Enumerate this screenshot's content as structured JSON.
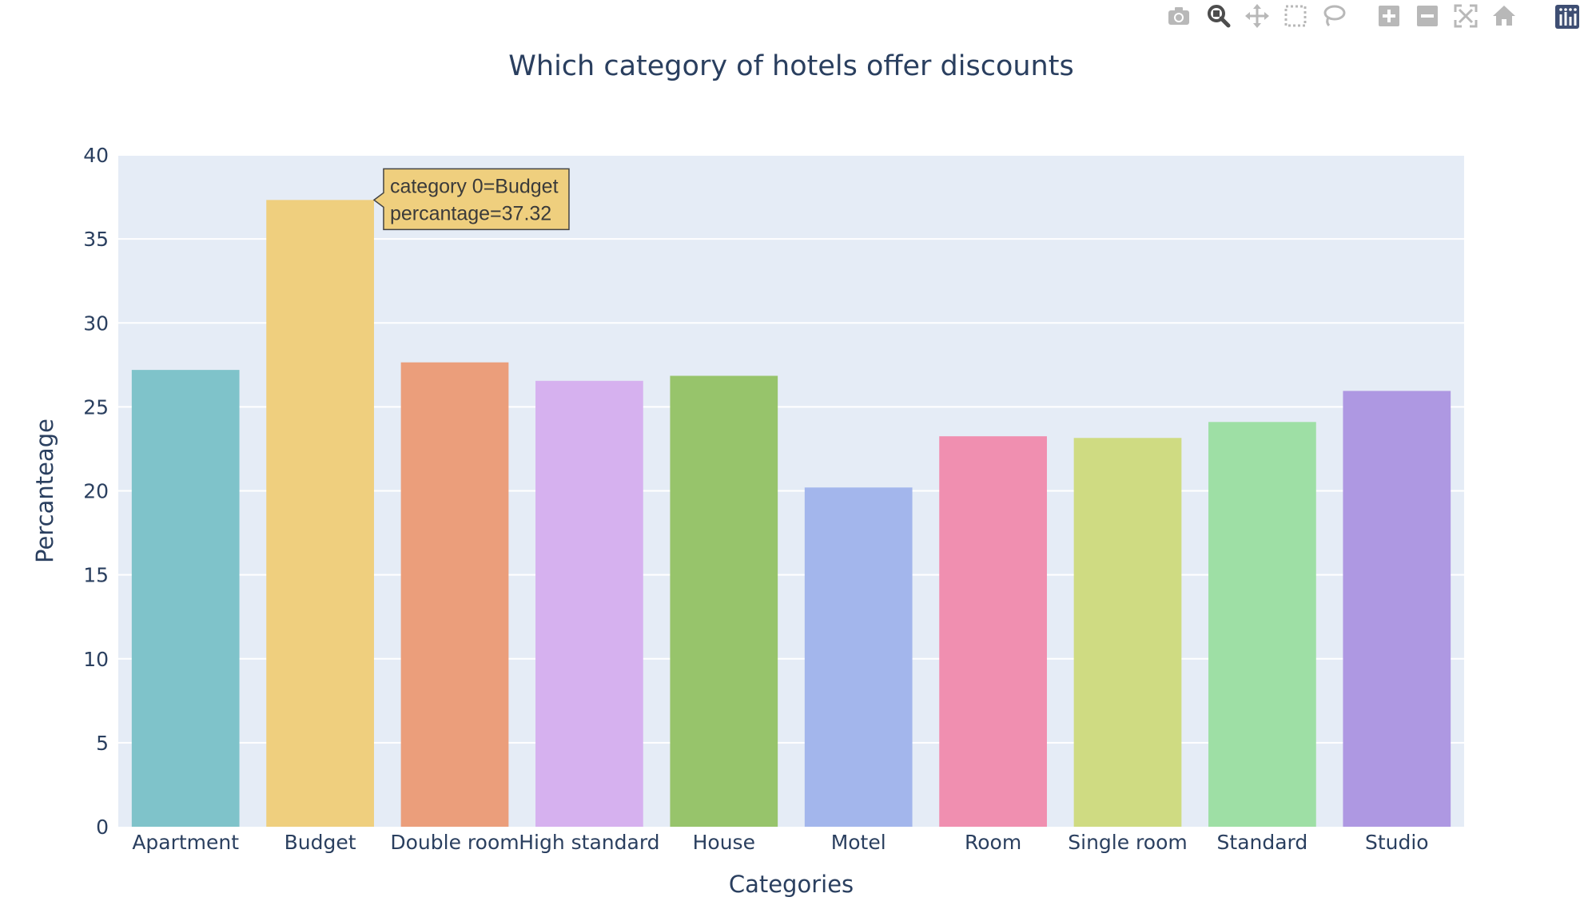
{
  "modebar": {
    "buttons": [
      {
        "name": "camera-icon",
        "title": "Download plot as a png"
      },
      {
        "name": "zoom-icon",
        "title": "Zoom",
        "active": true
      },
      {
        "name": "pan-icon",
        "title": "Pan"
      },
      {
        "name": "box-select-icon",
        "title": "Box Select"
      },
      {
        "name": "lasso-select-icon",
        "title": "Lasso Select"
      },
      {
        "name": "zoom-in-icon",
        "title": "Zoom in"
      },
      {
        "name": "zoom-out-icon",
        "title": "Zoom out"
      },
      {
        "name": "autoscale-icon",
        "title": "Autoscale"
      },
      {
        "name": "reset-axes-icon",
        "title": "Reset axes"
      },
      {
        "name": "plotly-logo-icon",
        "title": "Produced with Plotly"
      }
    ]
  },
  "chart_data": {
    "type": "bar",
    "title": "Which category of hotels offer discounts",
    "xlabel": "Categories",
    "ylabel": "Percanteage",
    "categories": [
      "Apartment",
      "Budget",
      "Double room",
      "High standard",
      "House",
      "Motel",
      "Room",
      "Single room",
      "Standard",
      "Studio"
    ],
    "values": [
      27.2,
      37.32,
      27.65,
      26.55,
      26.85,
      20.2,
      23.25,
      23.15,
      24.1,
      25.95
    ],
    "colors": [
      "#7fc3ca",
      "#efcf7e",
      "#eb9e7b",
      "#d6b1ef",
      "#97c46b",
      "#a3b6ec",
      "#f08fb0",
      "#cfdb82",
      "#9edfa5",
      "#ae98e2"
    ],
    "ylim": [
      0,
      40
    ],
    "yticks": [
      0,
      5,
      10,
      15,
      20,
      25,
      30,
      35,
      40
    ],
    "grid": true,
    "plot_bg": "#e5ecf6",
    "tooltip": {
      "category_index": 1,
      "lines": [
        "category 0=Budget",
        "percantage=37.32"
      ]
    }
  }
}
